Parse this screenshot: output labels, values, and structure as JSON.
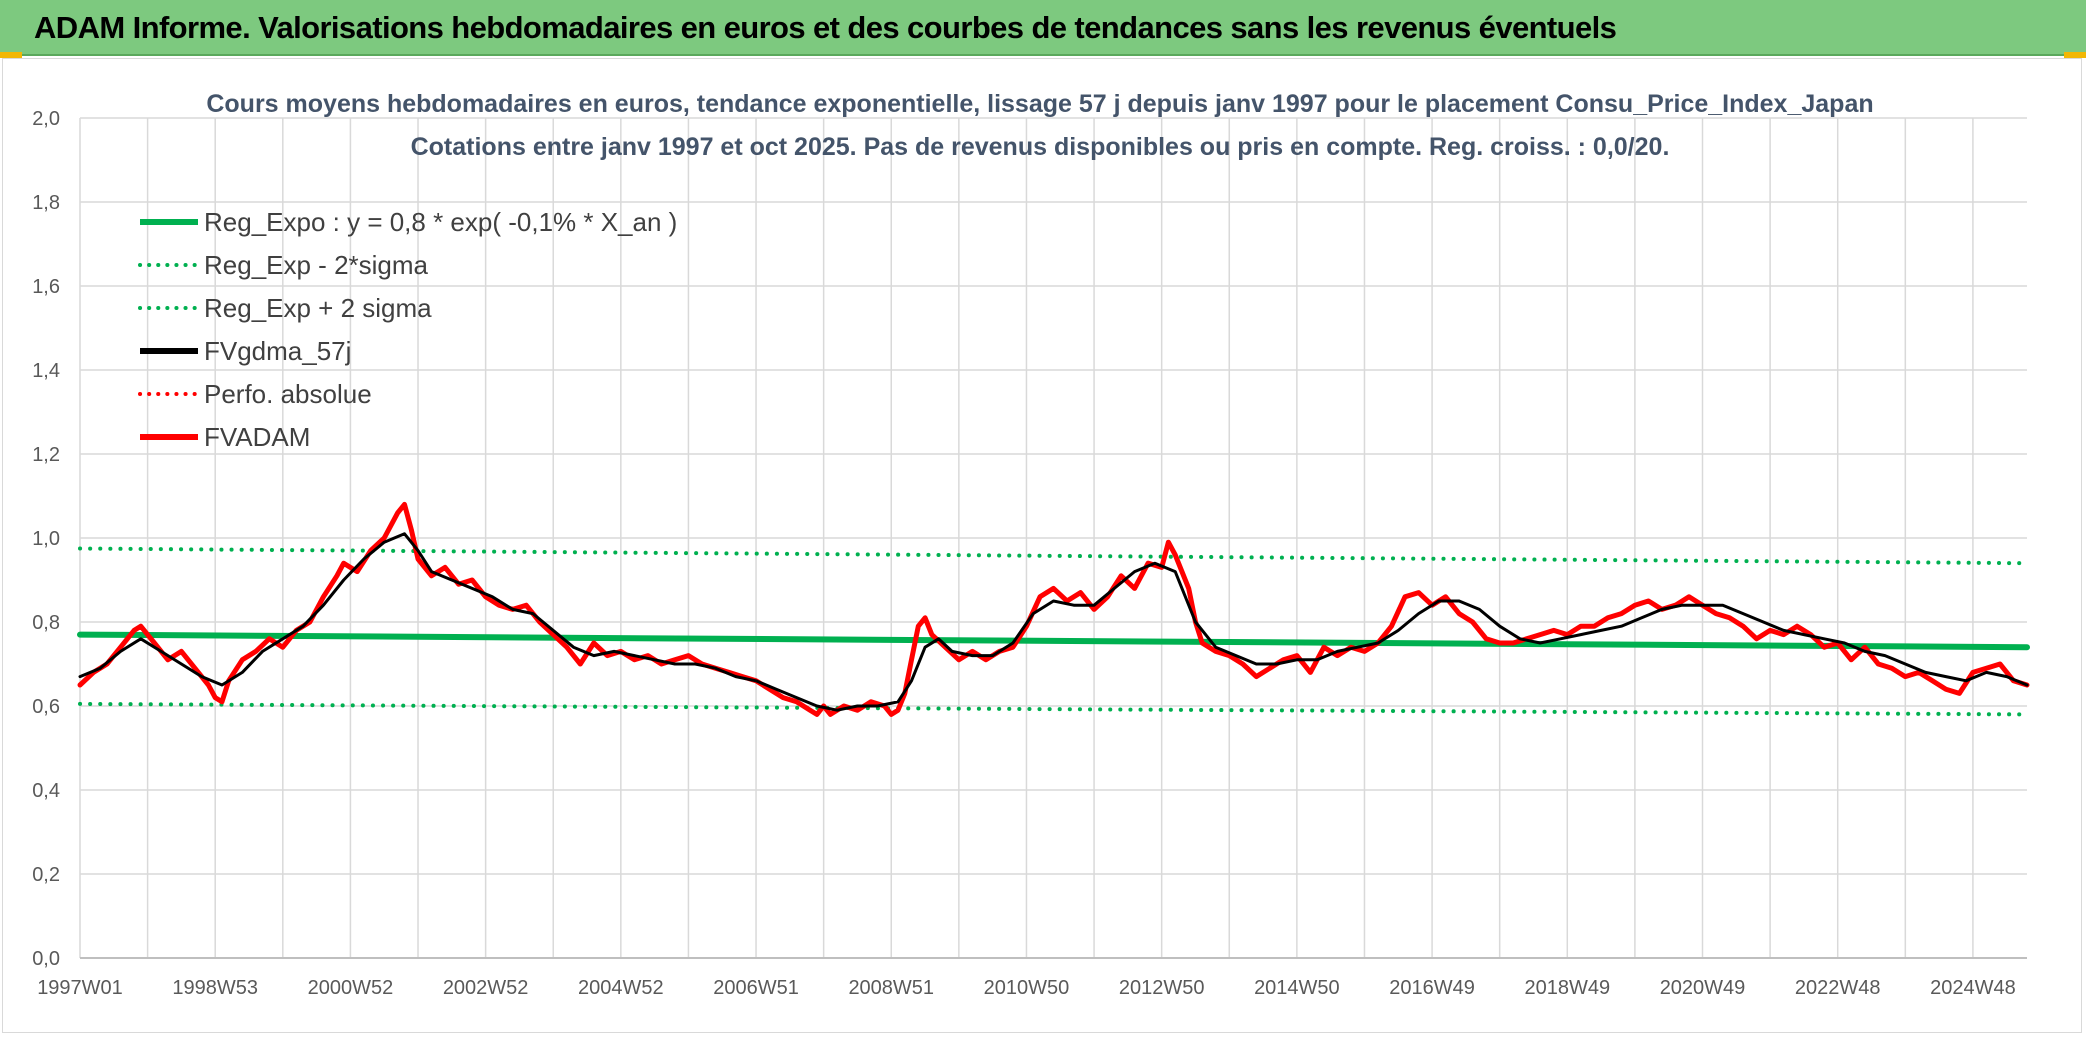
{
  "header": {
    "title": "ADAM Informe. Valorisations hebdomadaires en euros et des courbes de tendances sans les revenus éventuels"
  },
  "chart_data": {
    "type": "line",
    "title": "Cours moyens hebdomadaires en euros, tendance exponentielle, lissage 57 j depuis janv 1997 pour le placement Consu_Price_Index_Japan",
    "subtitle": "Cotations entre janv 1997 et oct 2025. Pas de revenus disponibles ou pris en compte. Reg. croiss. : 0,0/20.",
    "xlabel": "",
    "ylabel": "",
    "x_range": [
      1997.0,
      2025.8
    ],
    "ylim": [
      0,
      2
    ],
    "y_ticks": [
      "0,0",
      "0,2",
      "0,4",
      "0,6",
      "0,8",
      "1,0",
      "1,2",
      "1,4",
      "1,6",
      "1,8",
      "2,0"
    ],
    "x_tick_labels": [
      {
        "label": "1997W01",
        "x": 1997.0
      },
      {
        "label": "1998W53",
        "x": 1999.0
      },
      {
        "label": "2000W52",
        "x": 2001.0
      },
      {
        "label": "2002W52",
        "x": 2003.0
      },
      {
        "label": "2004W52",
        "x": 2005.0
      },
      {
        "label": "2006W51",
        "x": 2007.0
      },
      {
        "label": "2008W51",
        "x": 2009.0
      },
      {
        "label": "2010W50",
        "x": 2011.0
      },
      {
        "label": "2012W50",
        "x": 2013.0
      },
      {
        "label": "2014W50",
        "x": 2015.0
      },
      {
        "label": "2016W49",
        "x": 2017.0
      },
      {
        "label": "2018W49",
        "x": 2019.0
      },
      {
        "label": "2020W49",
        "x": 2021.0
      },
      {
        "label": "2022W48",
        "x": 2023.0
      },
      {
        "label": "2024W48",
        "x": 2025.0
      }
    ],
    "grid": true,
    "legend_position": "top-left",
    "series": [
      {
        "name": "Reg_Expo : y = 0,8 * exp( -0,1% *  X_an )",
        "color": "#00b050",
        "style": "solid",
        "width": 6,
        "points": [
          [
            1997.0,
            0.77
          ],
          [
            2025.8,
            0.74
          ]
        ]
      },
      {
        "name": "Reg_Exp - 2*sigma",
        "color": "#00b050",
        "style": "dotted",
        "width": 4,
        "points": [
          [
            1997.0,
            0.605
          ],
          [
            2025.8,
            0.58
          ]
        ]
      },
      {
        "name": "Reg_Exp + 2 sigma",
        "color": "#00b050",
        "style": "dotted",
        "width": 4,
        "points": [
          [
            1997.0,
            0.975
          ],
          [
            2025.8,
            0.94
          ]
        ]
      },
      {
        "name": "FVgdma_57j",
        "color": "#000000",
        "style": "solid",
        "width": 3,
        "points": [
          [
            1997.0,
            0.67
          ],
          [
            1997.3,
            0.69
          ],
          [
            1997.6,
            0.73
          ],
          [
            1997.9,
            0.76
          ],
          [
            1998.2,
            0.73
          ],
          [
            1998.5,
            0.7
          ],
          [
            1998.8,
            0.67
          ],
          [
            1999.1,
            0.65
          ],
          [
            1999.4,
            0.68
          ],
          [
            1999.7,
            0.73
          ],
          [
            2000.0,
            0.76
          ],
          [
            2000.3,
            0.79
          ],
          [
            2000.6,
            0.84
          ],
          [
            2000.9,
            0.9
          ],
          [
            2001.2,
            0.95
          ],
          [
            2001.5,
            0.99
          ],
          [
            2001.8,
            1.01
          ],
          [
            2002.0,
            0.97
          ],
          [
            2002.2,
            0.92
          ],
          [
            2002.5,
            0.9
          ],
          [
            2002.8,
            0.88
          ],
          [
            2003.1,
            0.86
          ],
          [
            2003.4,
            0.83
          ],
          [
            2003.7,
            0.82
          ],
          [
            2004.0,
            0.78
          ],
          [
            2004.3,
            0.74
          ],
          [
            2004.6,
            0.72
          ],
          [
            2004.9,
            0.73
          ],
          [
            2005.2,
            0.72
          ],
          [
            2005.5,
            0.71
          ],
          [
            2005.8,
            0.7
          ],
          [
            2006.1,
            0.7
          ],
          [
            2006.4,
            0.69
          ],
          [
            2006.7,
            0.67
          ],
          [
            2007.0,
            0.66
          ],
          [
            2007.3,
            0.64
          ],
          [
            2007.6,
            0.62
          ],
          [
            2007.9,
            0.6
          ],
          [
            2008.2,
            0.59
          ],
          [
            2008.5,
            0.6
          ],
          [
            2008.8,
            0.6
          ],
          [
            2009.1,
            0.61
          ],
          [
            2009.3,
            0.66
          ],
          [
            2009.5,
            0.74
          ],
          [
            2009.7,
            0.76
          ],
          [
            2009.9,
            0.73
          ],
          [
            2010.2,
            0.72
          ],
          [
            2010.5,
            0.72
          ],
          [
            2010.8,
            0.75
          ],
          [
            2011.1,
            0.82
          ],
          [
            2011.4,
            0.85
          ],
          [
            2011.7,
            0.84
          ],
          [
            2012.0,
            0.84
          ],
          [
            2012.3,
            0.88
          ],
          [
            2012.6,
            0.92
          ],
          [
            2012.9,
            0.94
          ],
          [
            2013.2,
            0.92
          ],
          [
            2013.5,
            0.8
          ],
          [
            2013.8,
            0.74
          ],
          [
            2014.1,
            0.72
          ],
          [
            2014.4,
            0.7
          ],
          [
            2014.7,
            0.7
          ],
          [
            2015.0,
            0.71
          ],
          [
            2015.3,
            0.71
          ],
          [
            2015.6,
            0.73
          ],
          [
            2015.9,
            0.74
          ],
          [
            2016.2,
            0.75
          ],
          [
            2016.5,
            0.78
          ],
          [
            2016.8,
            0.82
          ],
          [
            2017.1,
            0.85
          ],
          [
            2017.4,
            0.85
          ],
          [
            2017.7,
            0.83
          ],
          [
            2018.0,
            0.79
          ],
          [
            2018.3,
            0.76
          ],
          [
            2018.6,
            0.75
          ],
          [
            2018.9,
            0.76
          ],
          [
            2019.2,
            0.77
          ],
          [
            2019.5,
            0.78
          ],
          [
            2019.8,
            0.79
          ],
          [
            2020.1,
            0.81
          ],
          [
            2020.4,
            0.83
          ],
          [
            2020.7,
            0.84
          ],
          [
            2021.0,
            0.84
          ],
          [
            2021.3,
            0.84
          ],
          [
            2021.6,
            0.82
          ],
          [
            2021.9,
            0.8
          ],
          [
            2022.2,
            0.78
          ],
          [
            2022.5,
            0.77
          ],
          [
            2022.8,
            0.76
          ],
          [
            2023.1,
            0.75
          ],
          [
            2023.4,
            0.73
          ],
          [
            2023.7,
            0.72
          ],
          [
            2024.0,
            0.7
          ],
          [
            2024.3,
            0.68
          ],
          [
            2024.6,
            0.67
          ],
          [
            2024.9,
            0.66
          ],
          [
            2025.2,
            0.68
          ],
          [
            2025.5,
            0.67
          ],
          [
            2025.8,
            0.65
          ]
        ]
      },
      {
        "name": "Perfo. absolue",
        "color": "#ff0000",
        "style": "dotted",
        "width": 4,
        "points": []
      },
      {
        "name": "FVADAM",
        "color": "#ff0000",
        "style": "solid",
        "width": 5,
        "points": [
          [
            1997.0,
            0.65
          ],
          [
            1997.2,
            0.68
          ],
          [
            1997.4,
            0.7
          ],
          [
            1997.6,
            0.74
          ],
          [
            1997.8,
            0.78
          ],
          [
            1997.9,
            0.79
          ],
          [
            1998.1,
            0.75
          ],
          [
            1998.3,
            0.71
          ],
          [
            1998.5,
            0.73
          ],
          [
            1998.7,
            0.69
          ],
          [
            1998.9,
            0.65
          ],
          [
            1999.0,
            0.62
          ],
          [
            1999.1,
            0.61
          ],
          [
            1999.2,
            0.66
          ],
          [
            1999.4,
            0.71
          ],
          [
            1999.6,
            0.73
          ],
          [
            1999.8,
            0.76
          ],
          [
            2000.0,
            0.74
          ],
          [
            2000.2,
            0.78
          ],
          [
            2000.4,
            0.8
          ],
          [
            2000.6,
            0.86
          ],
          [
            2000.8,
            0.91
          ],
          [
            2000.9,
            0.94
          ],
          [
            2001.1,
            0.92
          ],
          [
            2001.3,
            0.97
          ],
          [
            2001.5,
            1.0
          ],
          [
            2001.7,
            1.06
          ],
          [
            2001.8,
            1.08
          ],
          [
            2001.9,
            1.02
          ],
          [
            2002.0,
            0.95
          ],
          [
            2002.2,
            0.91
          ],
          [
            2002.4,
            0.93
          ],
          [
            2002.6,
            0.89
          ],
          [
            2002.8,
            0.9
          ],
          [
            2003.0,
            0.86
          ],
          [
            2003.2,
            0.84
          ],
          [
            2003.4,
            0.83
          ],
          [
            2003.6,
            0.84
          ],
          [
            2003.8,
            0.8
          ],
          [
            2004.0,
            0.77
          ],
          [
            2004.2,
            0.74
          ],
          [
            2004.4,
            0.7
          ],
          [
            2004.6,
            0.75
          ],
          [
            2004.8,
            0.72
          ],
          [
            2005.0,
            0.73
          ],
          [
            2005.2,
            0.71
          ],
          [
            2005.4,
            0.72
          ],
          [
            2005.6,
            0.7
          ],
          [
            2005.8,
            0.71
          ],
          [
            2006.0,
            0.72
          ],
          [
            2006.2,
            0.7
          ],
          [
            2006.4,
            0.69
          ],
          [
            2006.6,
            0.68
          ],
          [
            2006.8,
            0.67
          ],
          [
            2007.0,
            0.66
          ],
          [
            2007.2,
            0.64
          ],
          [
            2007.4,
            0.62
          ],
          [
            2007.6,
            0.61
          ],
          [
            2007.8,
            0.59
          ],
          [
            2007.9,
            0.58
          ],
          [
            2008.0,
            0.6
          ],
          [
            2008.1,
            0.58
          ],
          [
            2008.3,
            0.6
          ],
          [
            2008.5,
            0.59
          ],
          [
            2008.7,
            0.61
          ],
          [
            2008.9,
            0.6
          ],
          [
            2009.0,
            0.58
          ],
          [
            2009.1,
            0.59
          ],
          [
            2009.2,
            0.63
          ],
          [
            2009.3,
            0.71
          ],
          [
            2009.4,
            0.79
          ],
          [
            2009.5,
            0.81
          ],
          [
            2009.6,
            0.77
          ],
          [
            2009.8,
            0.74
          ],
          [
            2010.0,
            0.71
          ],
          [
            2010.2,
            0.73
          ],
          [
            2010.4,
            0.71
          ],
          [
            2010.6,
            0.73
          ],
          [
            2010.8,
            0.74
          ],
          [
            2011.0,
            0.79
          ],
          [
            2011.2,
            0.86
          ],
          [
            2011.4,
            0.88
          ],
          [
            2011.6,
            0.85
          ],
          [
            2011.8,
            0.87
          ],
          [
            2012.0,
            0.83
          ],
          [
            2012.2,
            0.86
          ],
          [
            2012.4,
            0.91
          ],
          [
            2012.6,
            0.88
          ],
          [
            2012.8,
            0.94
          ],
          [
            2013.0,
            0.93
          ],
          [
            2013.1,
            0.99
          ],
          [
            2013.2,
            0.96
          ],
          [
            2013.4,
            0.88
          ],
          [
            2013.5,
            0.8
          ],
          [
            2013.6,
            0.75
          ],
          [
            2013.8,
            0.73
          ],
          [
            2014.0,
            0.72
          ],
          [
            2014.2,
            0.7
          ],
          [
            2014.4,
            0.67
          ],
          [
            2014.6,
            0.69
          ],
          [
            2014.8,
            0.71
          ],
          [
            2015.0,
            0.72
          ],
          [
            2015.2,
            0.68
          ],
          [
            2015.4,
            0.74
          ],
          [
            2015.6,
            0.72
          ],
          [
            2015.8,
            0.74
          ],
          [
            2016.0,
            0.73
          ],
          [
            2016.2,
            0.75
          ],
          [
            2016.4,
            0.79
          ],
          [
            2016.6,
            0.86
          ],
          [
            2016.8,
            0.87
          ],
          [
            2017.0,
            0.84
          ],
          [
            2017.2,
            0.86
          ],
          [
            2017.4,
            0.82
          ],
          [
            2017.6,
            0.8
          ],
          [
            2017.8,
            0.76
          ],
          [
            2018.0,
            0.75
          ],
          [
            2018.2,
            0.75
          ],
          [
            2018.4,
            0.76
          ],
          [
            2018.6,
            0.77
          ],
          [
            2018.8,
            0.78
          ],
          [
            2019.0,
            0.77
          ],
          [
            2019.2,
            0.79
          ],
          [
            2019.4,
            0.79
          ],
          [
            2019.6,
            0.81
          ],
          [
            2019.8,
            0.82
          ],
          [
            2020.0,
            0.84
          ],
          [
            2020.2,
            0.85
          ],
          [
            2020.4,
            0.83
          ],
          [
            2020.6,
            0.84
          ],
          [
            2020.8,
            0.86
          ],
          [
            2021.0,
            0.84
          ],
          [
            2021.2,
            0.82
          ],
          [
            2021.4,
            0.81
          ],
          [
            2021.6,
            0.79
          ],
          [
            2021.8,
            0.76
          ],
          [
            2022.0,
            0.78
          ],
          [
            2022.2,
            0.77
          ],
          [
            2022.4,
            0.79
          ],
          [
            2022.6,
            0.77
          ],
          [
            2022.8,
            0.74
          ],
          [
            2023.0,
            0.75
          ],
          [
            2023.2,
            0.71
          ],
          [
            2023.4,
            0.74
          ],
          [
            2023.6,
            0.7
          ],
          [
            2023.8,
            0.69
          ],
          [
            2024.0,
            0.67
          ],
          [
            2024.2,
            0.68
          ],
          [
            2024.4,
            0.66
          ],
          [
            2024.6,
            0.64
          ],
          [
            2024.8,
            0.63
          ],
          [
            2025.0,
            0.68
          ],
          [
            2025.2,
            0.69
          ],
          [
            2025.4,
            0.7
          ],
          [
            2025.6,
            0.66
          ],
          [
            2025.8,
            0.65
          ]
        ]
      }
    ]
  }
}
